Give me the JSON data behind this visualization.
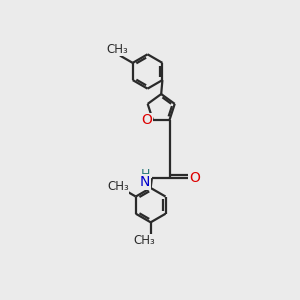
{
  "background_color": "#ebebeb",
  "bond_color": "#2a2a2a",
  "oxygen_color": "#dd0000",
  "nitrogen_color": "#0000cc",
  "hydrogen_color": "#2a7a7a",
  "line_width": 1.6,
  "figsize": [
    3.0,
    3.0
  ],
  "dpi": 100,
  "xlim": [
    0,
    10
  ],
  "ylim": [
    0,
    12
  ]
}
